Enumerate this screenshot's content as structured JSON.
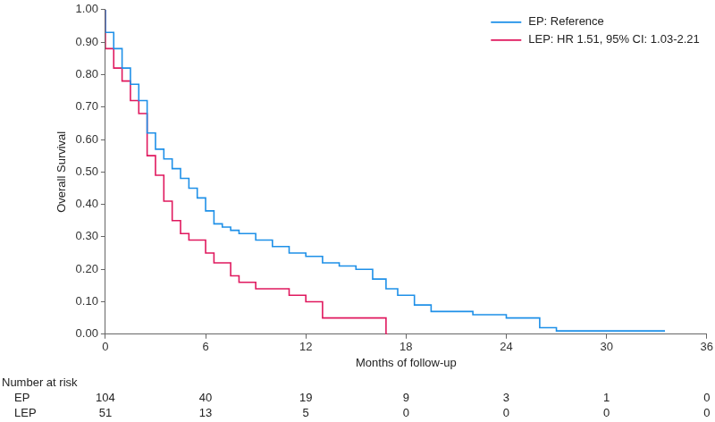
{
  "chart_data": {
    "type": "line",
    "x_label": "Months of follow-up",
    "y_label": "Overall Survival",
    "xlim": [
      0,
      36
    ],
    "xticks": [
      0,
      6,
      12,
      18,
      24,
      30,
      36
    ],
    "ylim": [
      0,
      1
    ],
    "yticks": [
      {
        "value": 0,
        "label": "0.00"
      },
      {
        "value": 0.1,
        "label": "0.10"
      },
      {
        "value": 0.2,
        "label": "0.20"
      },
      {
        "value": 0.3,
        "label": "0.30"
      },
      {
        "value": 0.4,
        "label": "0.40"
      },
      {
        "value": 0.5,
        "label": "0.50"
      },
      {
        "value": 0.6,
        "label": "0.60"
      },
      {
        "value": 0.7,
        "label": "0.70"
      },
      {
        "value": 0.8,
        "label": "0.80"
      },
      {
        "value": 0.9,
        "label": "0.90"
      },
      {
        "value": 1,
        "label": "1.00"
      }
    ],
    "grid": false,
    "legend": "upper right",
    "line_style": "steps",
    "series": [
      {
        "name": "EP: Reference",
        "color": "#1e90e8",
        "x": [
          0,
          0.5,
          1,
          1.5,
          2,
          2.5,
          3,
          3.5,
          4,
          4.5,
          5,
          5.5,
          6,
          6.5,
          7,
          7.5,
          8,
          9,
          10,
          11,
          12,
          13,
          14,
          15,
          16,
          16.8,
          17.5,
          18.5,
          19.5,
          22,
          24,
          26,
          27,
          33.5
        ],
        "values": [
          1.0,
          0.93,
          0.88,
          0.82,
          0.77,
          0.72,
          0.62,
          0.57,
          0.54,
          0.51,
          0.48,
          0.45,
          0.42,
          0.38,
          0.34,
          0.33,
          0.32,
          0.31,
          0.29,
          0.27,
          0.25,
          0.24,
          0.22,
          0.21,
          0.2,
          0.17,
          0.14,
          0.12,
          0.09,
          0.07,
          0.06,
          0.05,
          0.02,
          0.01
        ]
      },
      {
        "name": "LEP: HR 1.51, 95% CI: 1.03-2.21",
        "color": "#e0185e",
        "x": [
          0,
          0.5,
          1,
          1.5,
          2,
          2.5,
          3,
          3.5,
          4,
          4.5,
          5,
          6,
          6.5,
          7.5,
          8,
          9,
          11,
          12,
          13,
          16.8,
          16.9
        ],
        "values": [
          1.0,
          0.88,
          0.82,
          0.78,
          0.72,
          0.68,
          0.55,
          0.49,
          0.41,
          0.35,
          0.31,
          0.29,
          0.25,
          0.22,
          0.18,
          0.16,
          0.14,
          0.12,
          0.1,
          0.05,
          0.0
        ]
      }
    ],
    "number_at_risk": {
      "title": "Number at risk",
      "x": [
        0,
        6,
        12,
        18,
        24,
        30,
        36
      ],
      "rows": [
        {
          "name": "EP",
          "values": [
            104,
            40,
            19,
            9,
            3,
            1,
            0
          ]
        },
        {
          "name": "LEP",
          "values": [
            51,
            13,
            5,
            0,
            0,
            0,
            0
          ]
        }
      ]
    }
  }
}
